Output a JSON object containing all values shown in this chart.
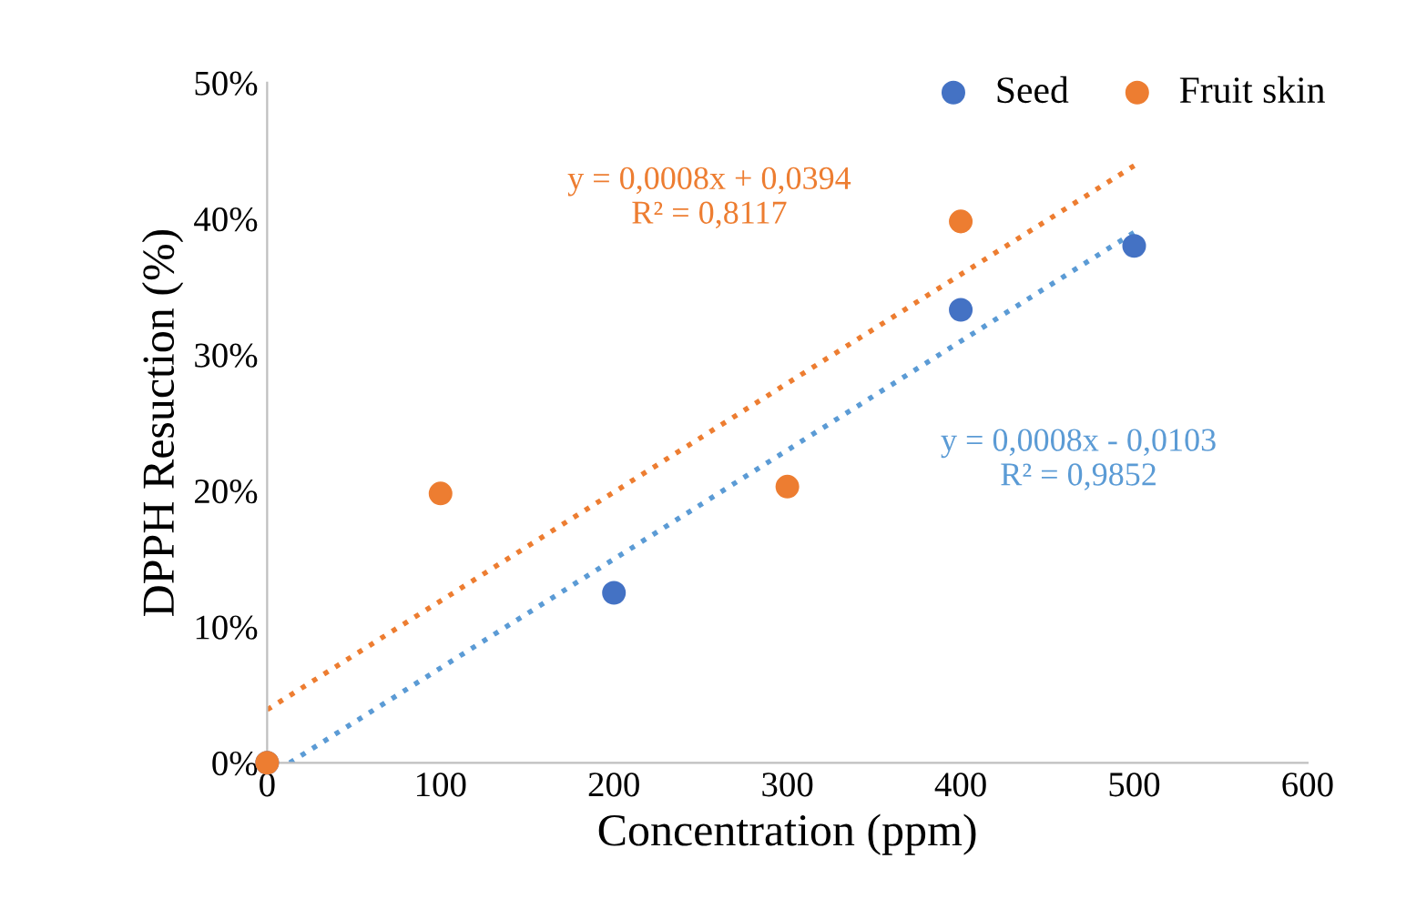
{
  "chart_data": {
    "type": "scatter",
    "xlabel": "Concentration (ppm)",
    "ylabel": "DPPH Resuction (%)",
    "xlim": [
      0,
      600
    ],
    "xticks": [
      0,
      100,
      200,
      300,
      400,
      500,
      600
    ],
    "ylim": [
      0,
      50
    ],
    "yticks": [
      {
        "value": 0,
        "label": "0%"
      },
      {
        "value": 10,
        "label": "10%"
      },
      {
        "value": 20,
        "label": "20%"
      },
      {
        "value": 30,
        "label": "30%"
      },
      {
        "value": 40,
        "label": "40%"
      },
      {
        "value": 50,
        "label": "50%"
      }
    ],
    "series": [
      {
        "name": "Seed",
        "color": "#4472c4",
        "marker": "circle",
        "x": [
          0,
          200,
          400,
          500
        ],
        "values": [
          0,
          12.5,
          33.3,
          38
        ]
      },
      {
        "name": "Fruit skin",
        "color": "#ed7d31",
        "marker": "circle",
        "x": [
          0,
          100,
          300,
          400
        ],
        "values": [
          0,
          19.8,
          20.3,
          39.8
        ]
      },
      {
        "type": "line",
        "color": "#ed7d31",
        "marker": "none",
        "line_style": "dotted",
        "x": [
          0,
          500
        ],
        "values": [
          3.9,
          43.9
        ]
      },
      {
        "type": "line",
        "color": "#5b9bd5",
        "marker": "none",
        "line_style": "dotted",
        "x": [
          13,
          500
        ],
        "values": [
          0,
          39.0
        ]
      }
    ],
    "annotations": [
      "y = 0,0008x + 0,0394\nR² = 0,8117",
      "y = 0,0008x - 0,0103\nR² = 0,9852"
    ],
    "legend": "top right",
    "grid": false
  }
}
